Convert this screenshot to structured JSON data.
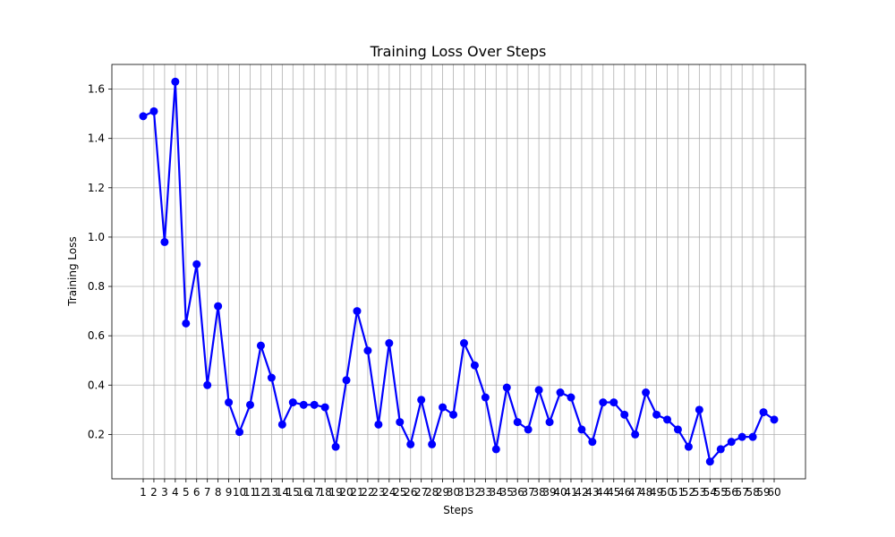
{
  "chart_data": {
    "type": "line",
    "title": "Training Loss Over Steps",
    "xlabel": "Steps",
    "ylabel": "Training Loss",
    "x": [
      1,
      2,
      3,
      4,
      5,
      6,
      7,
      8,
      9,
      10,
      11,
      12,
      13,
      14,
      15,
      16,
      17,
      18,
      19,
      20,
      21,
      22,
      23,
      24,
      25,
      26,
      27,
      28,
      29,
      30,
      31,
      32,
      33,
      34,
      35,
      36,
      37,
      38,
      39,
      40,
      41,
      42,
      43,
      44,
      45,
      46,
      47,
      48,
      49,
      50,
      51,
      52,
      53,
      54,
      55,
      56,
      57,
      58,
      59,
      60
    ],
    "series": [
      {
        "values": [
          1.49,
          1.51,
          0.98,
          1.63,
          0.65,
          0.89,
          0.4,
          0.72,
          0.33,
          0.21,
          0.32,
          0.56,
          0.43,
          0.24,
          0.33,
          0.32,
          0.32,
          0.31,
          0.15,
          0.42,
          0.7,
          0.54,
          0.24,
          0.57,
          0.25,
          0.16,
          0.34,
          0.16,
          0.31,
          0.28,
          0.57,
          0.48,
          0.35,
          0.14,
          0.39,
          0.25,
          0.22,
          0.38,
          0.25,
          0.37,
          0.35,
          0.22,
          0.17,
          0.33,
          0.33,
          0.28,
          0.2,
          0.37,
          0.28,
          0.26,
          0.22,
          0.15,
          0.3,
          0.09,
          0.14,
          0.17,
          0.19,
          0.19,
          0.29,
          0.26
        ],
        "color": "#0000ff"
      }
    ],
    "ylim": [
      0.02,
      1.7
    ],
    "yticks": [
      0.2,
      0.4,
      0.6,
      0.8,
      1.0,
      1.2,
      1.4,
      1.6
    ],
    "grid": true,
    "marker": "circle"
  }
}
